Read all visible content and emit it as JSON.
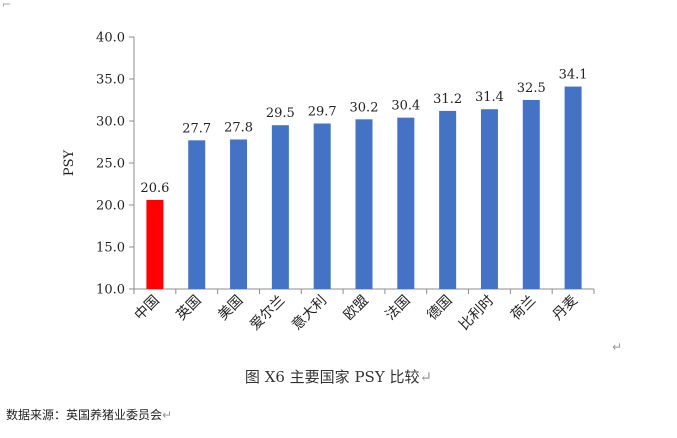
{
  "chart_data": {
    "type": "bar",
    "ylabel": "PSY",
    "ylim": [
      10.0,
      40.0
    ],
    "yticks": [
      "10.0",
      "15.0",
      "20.0",
      "25.0",
      "30.0",
      "35.0",
      "40.0"
    ],
    "categories": [
      "中国",
      "英国",
      "美国",
      "爱尔兰",
      "意大利",
      "欧盟",
      "法国",
      "德国",
      "比利时",
      "荷兰",
      "丹麦"
    ],
    "values": [
      20.6,
      27.7,
      27.8,
      29.5,
      29.7,
      30.2,
      30.4,
      31.2,
      31.4,
      32.5,
      34.1
    ],
    "value_labels": [
      "20.6",
      "27.7",
      "27.8",
      "29.5",
      "29.7",
      "30.2",
      "30.4",
      "31.2",
      "31.4",
      "32.5",
      "34.1"
    ],
    "colors": [
      "#ff0000",
      "#4472c4",
      "#4472c4",
      "#4472c4",
      "#4472c4",
      "#4472c4",
      "#4472c4",
      "#4472c4",
      "#4472c4",
      "#4472c4",
      "#4472c4"
    ],
    "grid": false,
    "legend": "none"
  },
  "caption": "图 X6  主要国家 PSY 比较",
  "source": "数据来源：英国养猪业委员会",
  "marks": {
    "corner": "⌐",
    "return": "↵"
  }
}
